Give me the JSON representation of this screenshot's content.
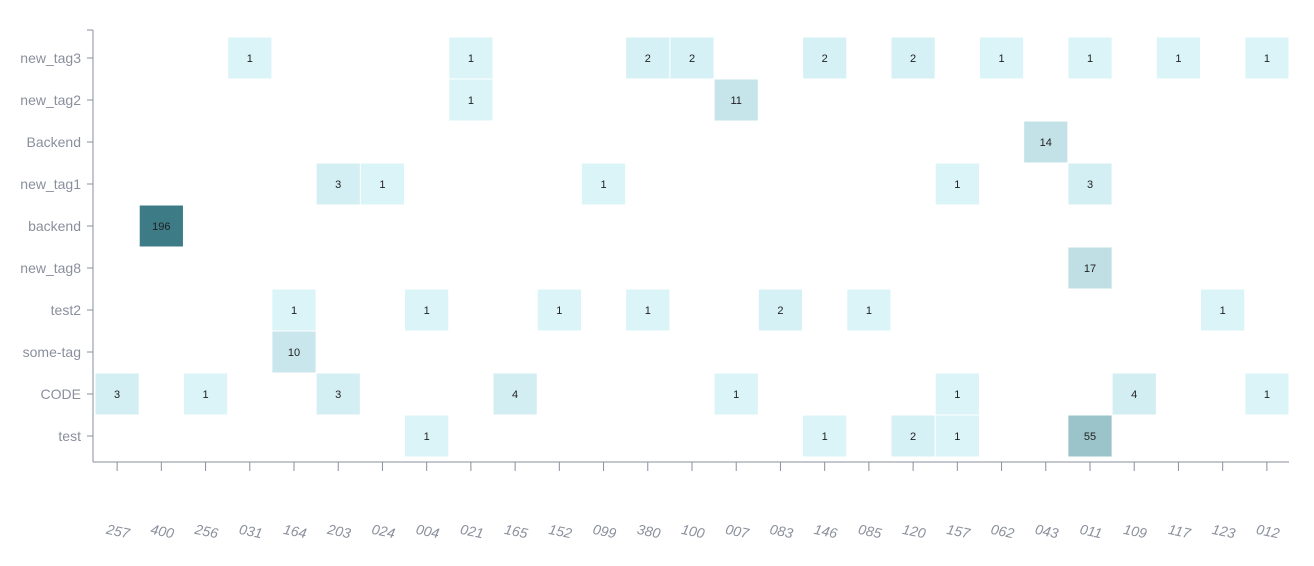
{
  "chart_data": {
    "type": "heatmap",
    "title": "",
    "xlabel": "",
    "ylabel": "",
    "x_categories": [
      "257",
      "400",
      "256",
      "031",
      "164",
      "203",
      "024",
      "004",
      "021",
      "165",
      "152",
      "099",
      "380",
      "100",
      "007",
      "083",
      "146",
      "085",
      "120",
      "157",
      "062",
      "043",
      "011",
      "109",
      "117",
      "123",
      "012"
    ],
    "y_categories": [
      "new_tag3",
      "new_tag2",
      "Backend",
      "new_tag1",
      "backend",
      "new_tag8",
      "test2",
      "some-tag",
      "CODE",
      "test"
    ],
    "cells": [
      {
        "x": "031",
        "y": "new_tag3",
        "value": 1
      },
      {
        "x": "021",
        "y": "new_tag3",
        "value": 1
      },
      {
        "x": "380",
        "y": "new_tag3",
        "value": 2
      },
      {
        "x": "100",
        "y": "new_tag3",
        "value": 2
      },
      {
        "x": "146",
        "y": "new_tag3",
        "value": 2
      },
      {
        "x": "120",
        "y": "new_tag3",
        "value": 2
      },
      {
        "x": "062",
        "y": "new_tag3",
        "value": 1
      },
      {
        "x": "011",
        "y": "new_tag3",
        "value": 1
      },
      {
        "x": "117",
        "y": "new_tag3",
        "value": 1
      },
      {
        "x": "012",
        "y": "new_tag3",
        "value": 1
      },
      {
        "x": "021",
        "y": "new_tag2",
        "value": 1
      },
      {
        "x": "007",
        "y": "new_tag2",
        "value": 11
      },
      {
        "x": "043",
        "y": "Backend",
        "value": 14
      },
      {
        "x": "203",
        "y": "new_tag1",
        "value": 3
      },
      {
        "x": "024",
        "y": "new_tag1",
        "value": 1
      },
      {
        "x": "099",
        "y": "new_tag1",
        "value": 1
      },
      {
        "x": "157",
        "y": "new_tag1",
        "value": 1
      },
      {
        "x": "011",
        "y": "new_tag1",
        "value": 3
      },
      {
        "x": "400",
        "y": "backend",
        "value": 196
      },
      {
        "x": "011",
        "y": "new_tag8",
        "value": 17
      },
      {
        "x": "164",
        "y": "test2",
        "value": 1
      },
      {
        "x": "004",
        "y": "test2",
        "value": 1
      },
      {
        "x": "152",
        "y": "test2",
        "value": 1
      },
      {
        "x": "380",
        "y": "test2",
        "value": 1
      },
      {
        "x": "083",
        "y": "test2",
        "value": 2
      },
      {
        "x": "085",
        "y": "test2",
        "value": 1
      },
      {
        "x": "123",
        "y": "test2",
        "value": 1
      },
      {
        "x": "164",
        "y": "some-tag",
        "value": 10
      },
      {
        "x": "257",
        "y": "CODE",
        "value": 3
      },
      {
        "x": "256",
        "y": "CODE",
        "value": 1
      },
      {
        "x": "203",
        "y": "CODE",
        "value": 3
      },
      {
        "x": "165",
        "y": "CODE",
        "value": 4
      },
      {
        "x": "007",
        "y": "CODE",
        "value": 1
      },
      {
        "x": "157",
        "y": "CODE",
        "value": 1
      },
      {
        "x": "109",
        "y": "CODE",
        "value": 4
      },
      {
        "x": "012",
        "y": "CODE",
        "value": 1
      },
      {
        "x": "004",
        "y": "test",
        "value": 1
      },
      {
        "x": "146",
        "y": "test",
        "value": 1
      },
      {
        "x": "120",
        "y": "test",
        "value": 2
      },
      {
        "x": "157",
        "y": "test",
        "value": 1
      },
      {
        "x": "011",
        "y": "test",
        "value": 55
      }
    ],
    "value_range": [
      1,
      196
    ],
    "color_low": "#daf4f8",
    "color_high": "#3d7c86",
    "grid": false,
    "legend": "none"
  }
}
